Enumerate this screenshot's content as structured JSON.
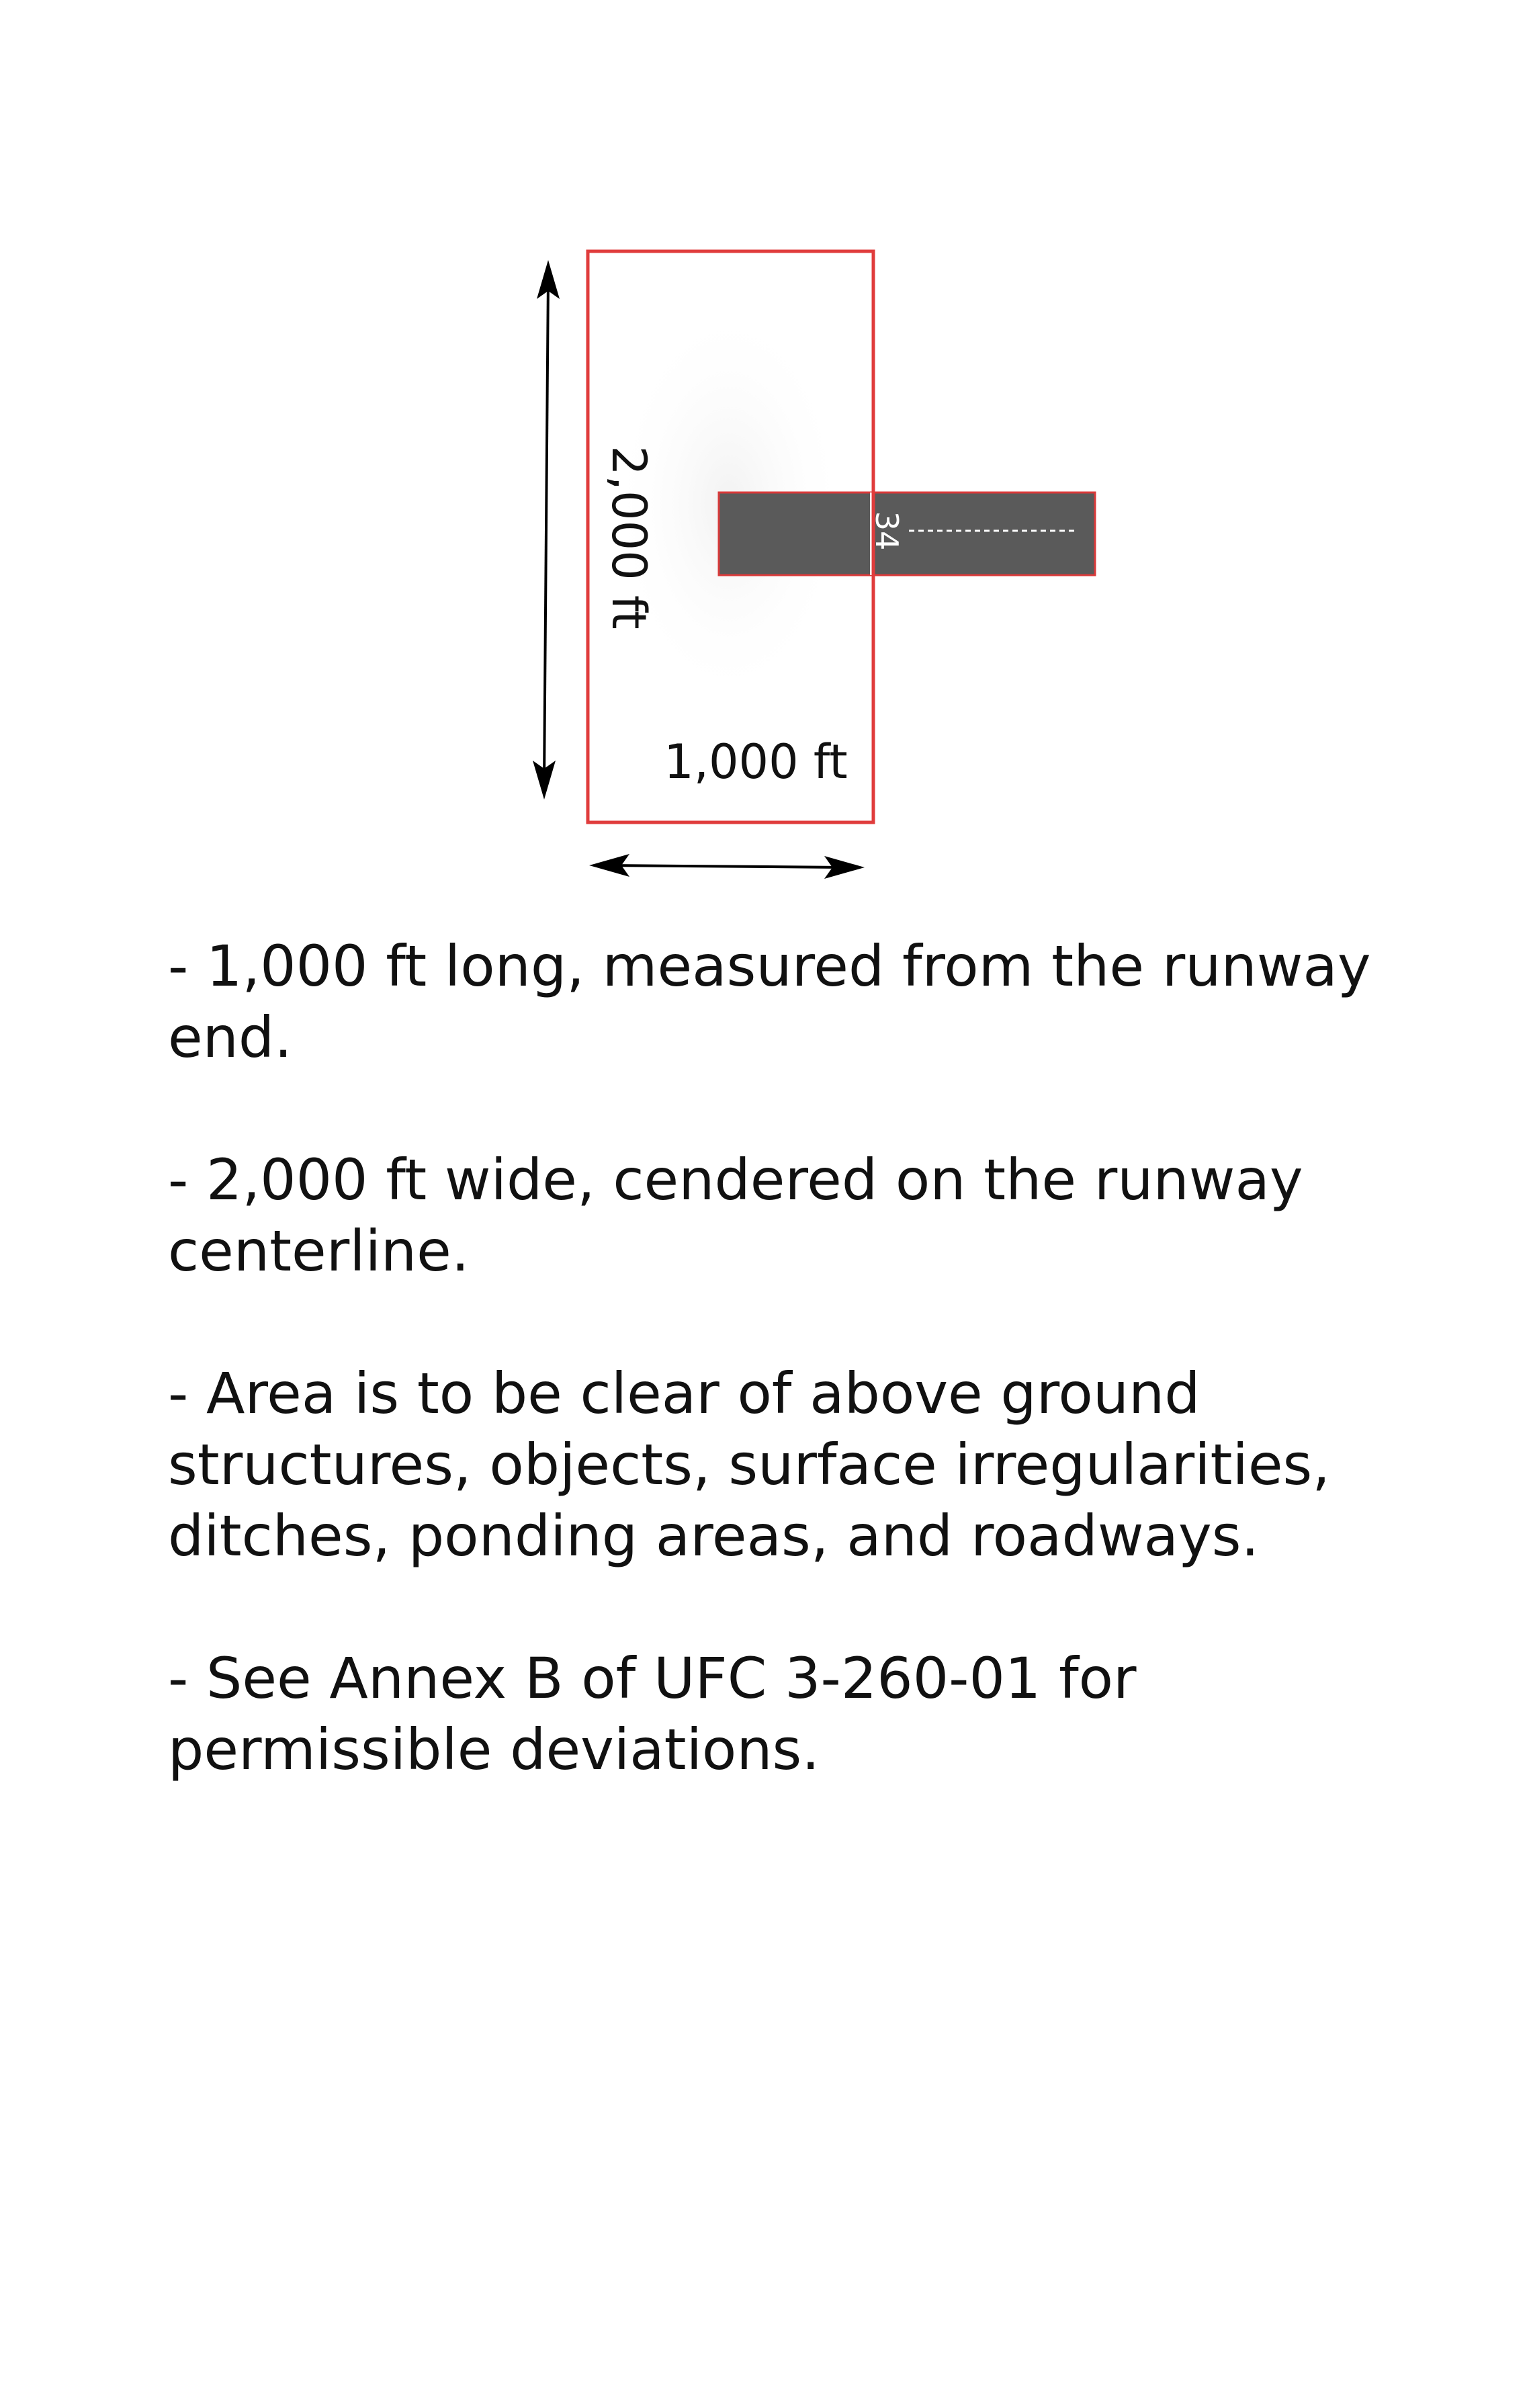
{
  "diagram": {
    "height_label": "2,000 ft",
    "width_label": "1,000 ft",
    "runway_number": "34",
    "colors": {
      "boundary": "#e03c3c",
      "runway_fill": "#5a5a5a",
      "runway_outline": "#d93a3a",
      "arrow": "#000000",
      "runway_marking": "#ffffff"
    }
  },
  "notes": [
    "- 1,000 ft long, measured from the runway end.",
    "- 2,000 ft wide, cendered on the runway centerline.",
    "- Area is to be clear of above ground structures, objects, surface irregularities, ditches, ponding areas, and roadways.",
    "- See Annex B of UFC 3-260-01 for permissible deviations."
  ]
}
